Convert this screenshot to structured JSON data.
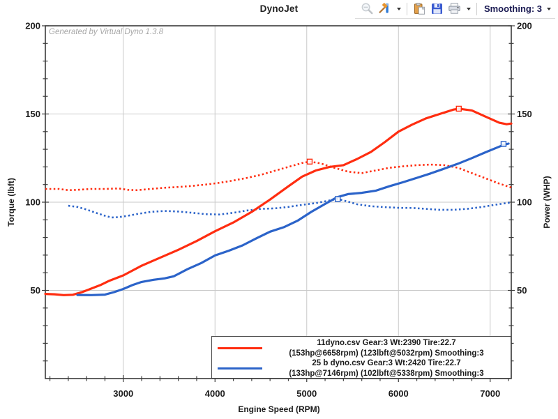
{
  "header": {
    "title": "DynoJet",
    "smoothing_label": "Smoothing: 3",
    "icons": [
      "zoom-out-icon",
      "tools-icon",
      "paste-icon",
      "save-icon",
      "print-icon"
    ]
  },
  "colors": {
    "red_series": "#ff2d10",
    "blue_series": "#2b63c9",
    "grid": "#c9c9c9",
    "axis": "#3a3a3a",
    "tick_text": "#1c1c1c"
  },
  "chart_data": {
    "type": "line",
    "watermark": "Generated by Virtual Dyno 1.3.8",
    "xlabel": "Engine Speed (RPM)",
    "ylabel_left": "Torque (lbft)",
    "ylabel_right": "Power (WHP)",
    "xlim": [
      2150,
      7230
    ],
    "ylim": [
      0,
      200
    ],
    "x_ticks": [
      3000,
      4000,
      5000,
      6000,
      7000
    ],
    "y_ticks": [
      50,
      100,
      150,
      200
    ],
    "x_minor_step": 200,
    "y_minor_step": 10,
    "grid": true,
    "legend_position": "bottom-right",
    "series": [
      {
        "name": "11dyno-power-hp",
        "color": "#ff2d10",
        "style": "solid",
        "peak_marker": [
          6658,
          153
        ],
        "points": [
          [
            2150,
            48
          ],
          [
            2250,
            47.8
          ],
          [
            2350,
            47.3
          ],
          [
            2450,
            47.5
          ],
          [
            2550,
            49
          ],
          [
            2650,
            51
          ],
          [
            2750,
            53
          ],
          [
            2850,
            55.5
          ],
          [
            3000,
            58.5
          ],
          [
            3200,
            64
          ],
          [
            3400,
            68.5
          ],
          [
            3600,
            73
          ],
          [
            3800,
            78
          ],
          [
            4000,
            83.5
          ],
          [
            4200,
            88.5
          ],
          [
            4400,
            94.5
          ],
          [
            4600,
            101.5
          ],
          [
            4800,
            109
          ],
          [
            4950,
            114.5
          ],
          [
            5100,
            118
          ],
          [
            5250,
            120
          ],
          [
            5400,
            121
          ],
          [
            5550,
            124.5
          ],
          [
            5700,
            128.5
          ],
          [
            5850,
            134
          ],
          [
            6000,
            140
          ],
          [
            6150,
            144
          ],
          [
            6300,
            147.5
          ],
          [
            6450,
            150
          ],
          [
            6600,
            152.5
          ],
          [
            6658,
            153
          ],
          [
            6800,
            152
          ],
          [
            6950,
            148.5
          ],
          [
            7100,
            145
          ],
          [
            7180,
            144.2
          ],
          [
            7230,
            144.6
          ]
        ]
      },
      {
        "name": "11dyno-torque-lbft",
        "color": "#ff2d10",
        "style": "dotted",
        "peak_marker": [
          5032,
          123
        ],
        "points": [
          [
            2150,
            107.5
          ],
          [
            2300,
            107.5
          ],
          [
            2400,
            106.8
          ],
          [
            2500,
            107
          ],
          [
            2650,
            107.5
          ],
          [
            2800,
            107.5
          ],
          [
            2950,
            107.8
          ],
          [
            3050,
            107
          ],
          [
            3150,
            106.8
          ],
          [
            3300,
            107.5
          ],
          [
            3450,
            108.2
          ],
          [
            3600,
            108.6
          ],
          [
            3750,
            109.2
          ],
          [
            3900,
            110
          ],
          [
            4050,
            111
          ],
          [
            4200,
            112.3
          ],
          [
            4350,
            113.8
          ],
          [
            4500,
            115.5
          ],
          [
            4650,
            117.8
          ],
          [
            4800,
            120
          ],
          [
            4950,
            122.2
          ],
          [
            5032,
            123
          ],
          [
            5150,
            122
          ],
          [
            5300,
            119.5
          ],
          [
            5450,
            117.3
          ],
          [
            5600,
            116.5
          ],
          [
            5750,
            118
          ],
          [
            5900,
            119.5
          ],
          [
            6050,
            120.3
          ],
          [
            6200,
            121
          ],
          [
            6350,
            121.3
          ],
          [
            6500,
            121
          ],
          [
            6650,
            119.5
          ],
          [
            6800,
            116.5
          ],
          [
            6950,
            113.5
          ],
          [
            7100,
            110.5
          ],
          [
            7230,
            108.3
          ]
        ]
      },
      {
        "name": "25b-power-hp",
        "color": "#2b63c9",
        "style": "solid",
        "peak_marker": [
          7146,
          133
        ],
        "points": [
          [
            2500,
            47.4
          ],
          [
            2650,
            47.3
          ],
          [
            2800,
            47.6
          ],
          [
            2900,
            49
          ],
          [
            3000,
            50.8
          ],
          [
            3100,
            53
          ],
          [
            3200,
            54.8
          ],
          [
            3330,
            56
          ],
          [
            3450,
            56.8
          ],
          [
            3550,
            58
          ],
          [
            3700,
            62
          ],
          [
            3850,
            65.5
          ],
          [
            4000,
            69.8
          ],
          [
            4150,
            72.5
          ],
          [
            4300,
            75.5
          ],
          [
            4450,
            79.5
          ],
          [
            4600,
            83.3
          ],
          [
            4750,
            85.8
          ],
          [
            4900,
            89.5
          ],
          [
            5050,
            94.5
          ],
          [
            5200,
            99
          ],
          [
            5330,
            102.8
          ],
          [
            5450,
            104.6
          ],
          [
            5600,
            105.3
          ],
          [
            5750,
            106.5
          ],
          [
            5900,
            109
          ],
          [
            6050,
            111.3
          ],
          [
            6200,
            113.8
          ],
          [
            6350,
            116.3
          ],
          [
            6500,
            119
          ],
          [
            6650,
            121.8
          ],
          [
            6800,
            125
          ],
          [
            6950,
            128.3
          ],
          [
            7100,
            131.5
          ],
          [
            7146,
            132.5
          ],
          [
            7200,
            133.2
          ]
        ]
      },
      {
        "name": "25b-torque-lbft",
        "color": "#2b63c9",
        "style": "dotted",
        "peak_marker": [
          5338,
          101.8
        ],
        "points": [
          [
            2400,
            98
          ],
          [
            2500,
            97.3
          ],
          [
            2600,
            95.8
          ],
          [
            2700,
            94
          ],
          [
            2800,
            92.3
          ],
          [
            2870,
            91.3
          ],
          [
            2950,
            91.5
          ],
          [
            3050,
            92.3
          ],
          [
            3150,
            93.3
          ],
          [
            3300,
            94.5
          ],
          [
            3450,
            95
          ],
          [
            3600,
            94.7
          ],
          [
            3750,
            94
          ],
          [
            3900,
            93.2
          ],
          [
            4050,
            93
          ],
          [
            4200,
            94
          ],
          [
            4350,
            95.3
          ],
          [
            4500,
            96.2
          ],
          [
            4650,
            96.5
          ],
          [
            4800,
            97.3
          ],
          [
            4950,
            98.5
          ],
          [
            5100,
            99.5
          ],
          [
            5250,
            101
          ],
          [
            5338,
            101.8
          ],
          [
            5450,
            100.3
          ],
          [
            5550,
            98.8
          ],
          [
            5700,
            97.7
          ],
          [
            5850,
            97.2
          ],
          [
            6000,
            96.8
          ],
          [
            6150,
            96.7
          ],
          [
            6300,
            96.2
          ],
          [
            6450,
            95.7
          ],
          [
            6600,
            95.7
          ],
          [
            6750,
            96.2
          ],
          [
            6900,
            97.2
          ],
          [
            7050,
            98.5
          ],
          [
            7150,
            99.3
          ],
          [
            7230,
            99.8
          ]
        ]
      }
    ],
    "legend": {
      "entries": [
        {
          "color": "#ff2d10",
          "line1": "11dyno.csv Gear:3 Wt:2390 Tire:22.7",
          "line2": "(153hp@6658rpm) (123lbft@5032rpm) Smoothing:3"
        },
        {
          "color": "#2b63c9",
          "line1": "25 b dyno.csv Gear:3 Wt:2420 Tire:22.7",
          "line2": "(133hp@7146rpm) (102lbft@5338rpm) Smoothing:3"
        }
      ]
    }
  }
}
